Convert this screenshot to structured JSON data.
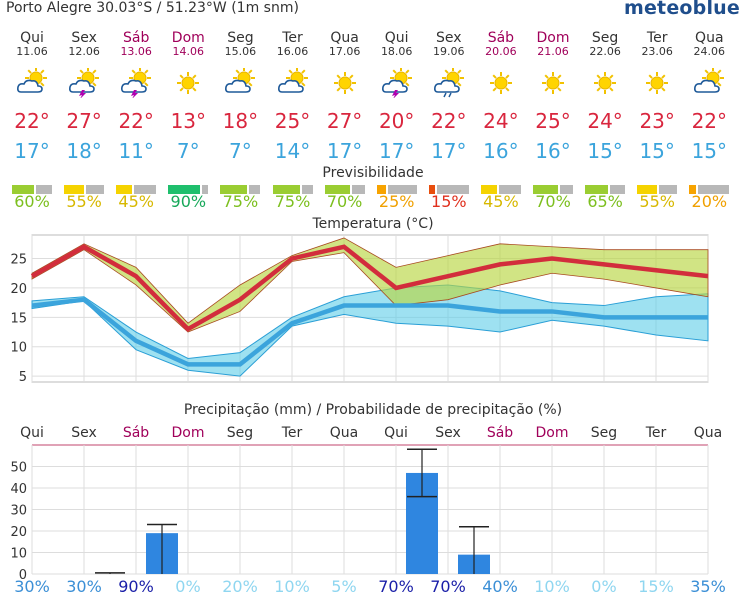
{
  "header": {
    "title": "Porto Alegre  30.03°S / 51.23°W (1m snm)",
    "brand": "meteoblue"
  },
  "colors": {
    "weekend": "#a0005a",
    "tmax": "#d9263e",
    "tmin": "#3ba4dc",
    "pred_green": "#9acd32",
    "pred_yellow": "#f5d300",
    "pred_orange": "#f7a300",
    "pred_red": "#e84e0e",
    "pred_darkgreen": "#1fbf6d",
    "bars": "#2f86e0"
  },
  "days": [
    {
      "name": "Qui",
      "date": "11.06",
      "weekend": false,
      "icon": "cloudy-sun-icon",
      "tmax": "22°",
      "tmin": "17°",
      "pred": "60%",
      "pred_frac": 0.6,
      "pred_color": "green"
    },
    {
      "name": "Sex",
      "date": "12.06",
      "weekend": false,
      "icon": "thunderstorm-sun-icon",
      "tmax": "27°",
      "tmin": "18°",
      "pred": "55%",
      "pred_frac": 0.55,
      "pred_color": "yellow"
    },
    {
      "name": "Sáb",
      "date": "13.06",
      "weekend": true,
      "icon": "thunderstorm-sun-icon",
      "tmax": "22°",
      "tmin": "11°",
      "pred": "45%",
      "pred_frac": 0.45,
      "pred_color": "yellow"
    },
    {
      "name": "Dom",
      "date": "14.06",
      "weekend": true,
      "icon": "sunny-icon",
      "tmax": "13°",
      "tmin": "7°",
      "pred": "90%",
      "pred_frac": 0.9,
      "pred_color": "darkgreen"
    },
    {
      "name": "Seg",
      "date": "15.06",
      "weekend": false,
      "icon": "cloudy-sun-icon",
      "tmax": "18°",
      "tmin": "7°",
      "pred": "75%",
      "pred_frac": 0.75,
      "pred_color": "green"
    },
    {
      "name": "Ter",
      "date": "16.06",
      "weekend": false,
      "icon": "cloudy-sun-icon",
      "tmax": "25°",
      "tmin": "14°",
      "pred": "75%",
      "pred_frac": 0.75,
      "pred_color": "green"
    },
    {
      "name": "Qua",
      "date": "17.06",
      "weekend": false,
      "icon": "sunny-icon",
      "tmax": "27°",
      "tmin": "17°",
      "pred": "70%",
      "pred_frac": 0.7,
      "pred_color": "green"
    },
    {
      "name": "Qui",
      "date": "18.06",
      "weekend": false,
      "icon": "thunderstorm-sun-icon",
      "tmax": "20°",
      "tmin": "17°",
      "pred": "25%",
      "pred_frac": 0.25,
      "pred_color": "orange"
    },
    {
      "name": "Sex",
      "date": "19.06",
      "weekend": false,
      "icon": "rain-sun-icon",
      "tmax": "22°",
      "tmin": "17°",
      "pred": "15%",
      "pred_frac": 0.15,
      "pred_color": "red"
    },
    {
      "name": "Sáb",
      "date": "20.06",
      "weekend": true,
      "icon": "sunny-icon",
      "tmax": "24°",
      "tmin": "16°",
      "pred": "45%",
      "pred_frac": 0.45,
      "pred_color": "yellow"
    },
    {
      "name": "Dom",
      "date": "21.06",
      "weekend": true,
      "icon": "sunny-icon",
      "tmax": "25°",
      "tmin": "16°",
      "pred": "70%",
      "pred_frac": 0.7,
      "pred_color": "green"
    },
    {
      "name": "Seg",
      "date": "22.06",
      "weekend": false,
      "icon": "sunny-icon",
      "tmax": "24°",
      "tmin": "15°",
      "pred": "65%",
      "pred_frac": 0.65,
      "pred_color": "green"
    },
    {
      "name": "Ter",
      "date": "23.06",
      "weekend": false,
      "icon": "sunny-icon",
      "tmax": "23°",
      "tmin": "15°",
      "pred": "55%",
      "pred_frac": 0.55,
      "pred_color": "yellow"
    },
    {
      "name": "Qua",
      "date": "24.06",
      "weekend": false,
      "icon": "cloudy-sun-icon",
      "tmax": "22°",
      "tmin": "15°",
      "pred": "20%",
      "pred_frac": 0.2,
      "pred_color": "orange"
    }
  ],
  "predictability_label": "Previsibilidade",
  "temperature_label": "Temperatura (°C)",
  "precip_label": "Precipitação (mm) / Probabilidade de precipitação (%)",
  "precip_days": [
    "Qui",
    "Sex",
    "Sáb",
    "Dom",
    "Seg",
    "Ter",
    "Qua",
    "Qui",
    "Sex",
    "Sáb",
    "Dom",
    "Seg",
    "Ter",
    "Qua"
  ],
  "precip_probs": [
    "30%",
    "30%",
    "90%",
    "0%",
    "20%",
    "10%",
    "5%",
    "70%",
    "70%",
    "40%",
    "10%",
    "0%",
    "15%",
    "35%"
  ],
  "chart_data": [
    {
      "type": "line",
      "title": "Temperatura (°C)",
      "x": [
        "11.06",
        "12.06",
        "13.06",
        "14.06",
        "15.06",
        "16.06",
        "17.06",
        "18.06",
        "19.06",
        "20.06",
        "21.06",
        "22.06",
        "23.06",
        "24.06"
      ],
      "ylim": [
        4,
        29
      ],
      "yticks": [
        5,
        10,
        15,
        20,
        25
      ],
      "series": [
        {
          "name": "max",
          "values": [
            22,
            27,
            22,
            13,
            18,
            25,
            27,
            20,
            22,
            24,
            25,
            24,
            23,
            22
          ],
          "band_low": [
            21.5,
            26.5,
            20.5,
            12.5,
            16,
            24.5,
            26,
            17,
            18,
            20.5,
            22.5,
            21.5,
            20,
            18.5
          ],
          "band_high": [
            22.5,
            27.5,
            23.5,
            14,
            20.5,
            25.5,
            28.5,
            23.5,
            25.5,
            27.5,
            27,
            26.5,
            26.5,
            26.5
          ]
        },
        {
          "name": "min",
          "values": [
            17,
            18,
            11,
            7,
            7,
            14,
            17,
            17,
            17,
            16,
            16,
            15,
            15,
            15
          ],
          "band_low": [
            16.5,
            17.8,
            9.5,
            6,
            5,
            13.5,
            15.5,
            14,
            13.5,
            12.5,
            14.5,
            13.5,
            12,
            11
          ],
          "band_high": [
            17.8,
            18.5,
            12.5,
            8,
            9,
            15,
            18.5,
            20,
            20.5,
            19.5,
            17.5,
            17,
            18.5,
            19
          ]
        }
      ]
    },
    {
      "type": "bar",
      "title": "Precipitação (mm) / Probabilidade de precipitação (%)",
      "categories": [
        "Qui",
        "Sex",
        "Sáb",
        "Dom",
        "Seg",
        "Ter",
        "Qua",
        "Qui",
        "Sex",
        "Sáb",
        "Dom",
        "Seg",
        "Ter",
        "Qua"
      ],
      "values": [
        0,
        0,
        19,
        0,
        0,
        0,
        0,
        47,
        9,
        0,
        0,
        0,
        0,
        0
      ],
      "err_low": [
        0,
        0,
        0,
        0,
        0,
        0,
        0,
        36,
        0,
        0,
        0,
        0,
        0,
        0
      ],
      "err_high": [
        0,
        0.5,
        23,
        0,
        0,
        0,
        0,
        58,
        22,
        0,
        0,
        0,
        0,
        0
      ],
      "probabilities": [
        30,
        30,
        90,
        0,
        20,
        10,
        5,
        70,
        70,
        40,
        10,
        0,
        15,
        35
      ],
      "ylim": [
        0,
        60
      ],
      "yticks": [
        0,
        10,
        20,
        30,
        40,
        50
      ]
    }
  ]
}
